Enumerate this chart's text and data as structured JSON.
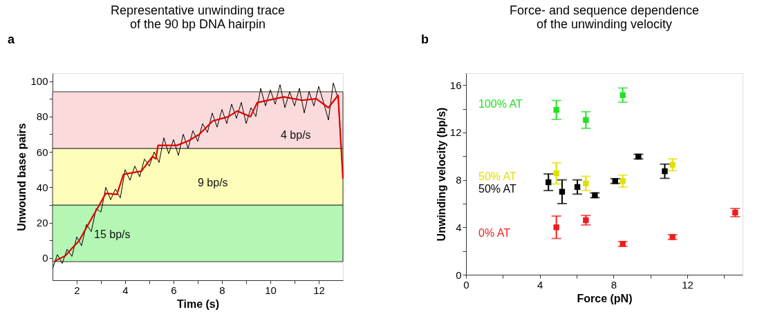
{
  "chart_data": [
    {
      "type": "line",
      "title": "Representative unwinding trace\nof the 90 bp DNA hairpin",
      "xlabel": "Time (s)",
      "ylabel": "Unwound base pairs",
      "annotations": [
        "a"
      ],
      "marker": "none",
      "grid": false,
      "line_style": "solid",
      "xlim": [
        1,
        13
      ],
      "ylim": [
        -12.5,
        104.5
      ],
      "xticks": [
        2,
        {
          "value": 3,
          "label": null
        },
        4,
        {
          "value": 5,
          "label": null
        },
        6,
        {
          "value": 7,
          "label": null
        },
        8,
        {
          "value": 9,
          "label": null
        },
        10,
        {
          "value": 11,
          "label": null
        },
        12
      ],
      "yticks": [
        0,
        {
          "value": 10,
          "label": null
        },
        20,
        {
          "value": 30,
          "label": null
        },
        40,
        {
          "value": 50,
          "label": null
        },
        60,
        {
          "value": 70,
          "label": null
        },
        80,
        {
          "value": 90,
          "label": null
        },
        100
      ],
      "bands": [
        {
          "axis": "y",
          "from": -2,
          "to": 30,
          "label": "15 bp/s",
          "color": "#b4f7b4"
        },
        {
          "axis": "y",
          "from": 30,
          "to": 62,
          "label": "9 bp/s",
          "color": "#fdfcb8"
        },
        {
          "axis": "y",
          "from": 62,
          "to": 94,
          "label": "4 bp/s",
          "color": "#fadada"
        }
      ],
      "series": [
        {
          "color": "#000000",
          "x": [
            1.0,
            1.2,
            1.4,
            1.6,
            1.8,
            2.0,
            2.2,
            2.4,
            2.6,
            2.8,
            3.0,
            3.2,
            3.4,
            3.6,
            3.8,
            4.0,
            4.2,
            4.4,
            4.6,
            4.8,
            5.0,
            5.2,
            5.4,
            5.6,
            5.8,
            6.0,
            6.2,
            6.4,
            6.6,
            6.8,
            7.0,
            7.2,
            7.4,
            7.6,
            7.8,
            8.0,
            8.2,
            8.4,
            8.6,
            8.8,
            9.0,
            9.2,
            9.4,
            9.6,
            9.8,
            10.0,
            10.2,
            10.4,
            10.6,
            10.8,
            11.0,
            11.2,
            11.4,
            11.6,
            11.8,
            12.0,
            12.2,
            12.4,
            12.6,
            12.8,
            13.0
          ],
          "values": [
            -6,
            2,
            -3,
            5,
            1,
            12,
            7,
            19,
            15,
            28,
            26,
            40,
            33,
            39,
            34,
            50,
            44,
            52,
            46,
            56,
            52,
            60,
            54,
            68,
            59,
            67,
            58,
            70,
            62,
            72,
            66,
            76,
            71,
            82,
            74,
            84,
            76,
            87,
            79,
            88,
            76,
            85,
            80,
            96,
            86,
            95,
            87,
            98,
            85,
            94,
            86,
            96,
            82,
            94,
            86,
            97,
            88,
            78,
            99,
            90,
            45
          ]
        },
        {
          "color": "#e00000",
          "x": [
            1.08,
            1.54,
            1.82,
            2.09,
            2.55,
            2.92,
            3.2,
            3.66,
            3.93,
            4.67,
            5.13,
            5.27,
            5.36,
            6.14,
            6.6,
            7.06,
            7.62,
            8.26,
            8.63,
            9.18,
            9.46,
            10.56,
            11.3,
            11.9,
            12.4,
            12.8,
            13.0
          ],
          "values": [
            -1.8,
            1.4,
            5.8,
            9.6,
            20.9,
            29.7,
            36.6,
            36,
            47.3,
            49.2,
            57.4,
            56.1,
            63.7,
            63.7,
            66.2,
            69.9,
            77.5,
            79.9,
            83.1,
            79.9,
            87.9,
            91.1,
            89.2,
            90,
            85,
            92,
            45
          ]
        }
      ]
    },
    {
      "type": "scatter",
      "title": "Force- and sequence dependence\nof the unwinding velocity",
      "xlabel": "Force (pN)",
      "ylabel": "Unwinding velocity (bp/s)",
      "annotations": [
        "b"
      ],
      "marker": "square",
      "grid": false,
      "xlim": [
        0,
        15
      ],
      "ylim": [
        0,
        17
      ],
      "xticks": [
        0,
        {
          "value": 2,
          "label": null
        },
        4,
        {
          "value": 6,
          "label": null
        },
        8,
        {
          "value": 10,
          "label": null
        },
        12,
        {
          "value": 14,
          "label": null
        }
      ],
      "yticks": [
        0,
        {
          "value": 2,
          "label": null
        },
        4,
        {
          "value": 6,
          "label": null
        },
        8,
        {
          "value": 10,
          "label": null
        },
        12,
        {
          "value": 14,
          "label": null
        },
        16
      ],
      "series": [
        {
          "name": "100% AT",
          "color": "#22e022",
          "x": [
            4.9,
            6.5,
            8.5
          ],
          "values": [
            13.9,
            13.05,
            15.15
          ],
          "errors": [
            0.8,
            0.7,
            0.6
          ]
        },
        {
          "name": "50% AT",
          "color": "#e0e000",
          "x": [
            4.9,
            6.5,
            8.5,
            11.2
          ],
          "values": [
            8.55,
            7.7,
            7.9,
            9.27
          ],
          "errors": [
            0.9,
            0.6,
            0.5,
            0.5
          ]
        },
        {
          "name": "50% AT",
          "color": "#000000",
          "x": [
            4.47,
            5.21,
            6.04,
            6.99,
            8.09,
            9.35,
            10.78
          ],
          "values": [
            7.8,
            7.0,
            7.4,
            6.7,
            7.9,
            9.96,
            8.73
          ],
          "errors": [
            0.7,
            1.0,
            0.6,
            0.2,
            0.2,
            0.2,
            0.6
          ]
        },
        {
          "name": "0% AT",
          "color": "#ee1c1c",
          "x": [
            4.9,
            6.5,
            8.5,
            11.2,
            14.6
          ],
          "values": [
            4.0,
            4.6,
            2.6,
            3.18,
            5.24
          ],
          "errors": [
            0.95,
            0.4,
            0.2,
            0.2,
            0.35
          ]
        }
      ]
    }
  ]
}
